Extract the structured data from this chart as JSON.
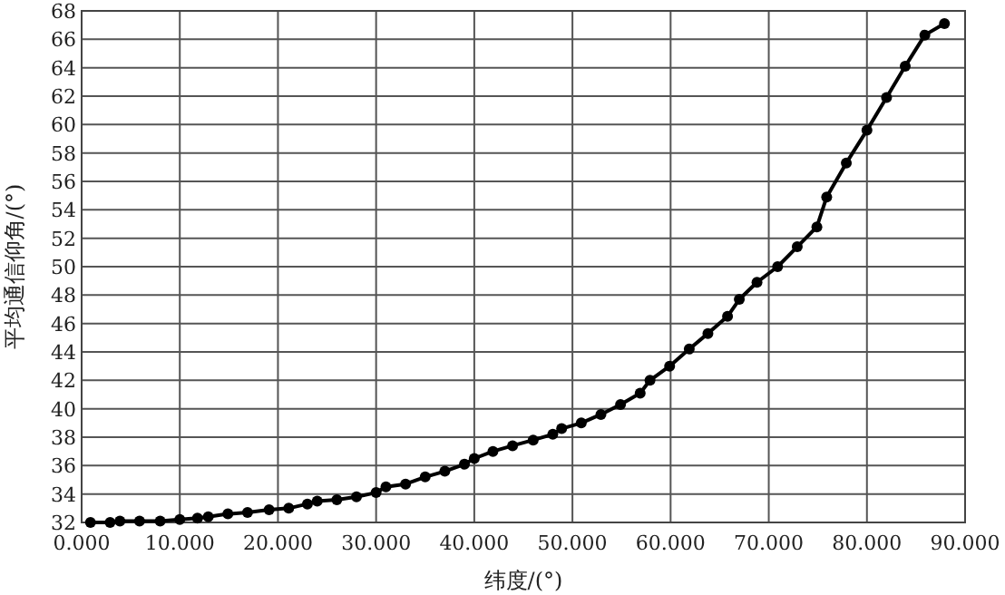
{
  "chart_data": {
    "type": "line",
    "xlabel": "纬度/(°)",
    "ylabel": "平均通信仰角/(°)",
    "grid": true,
    "marker": "circle",
    "line_style": "solid",
    "color": "#000000",
    "xlim": [
      0,
      90
    ],
    "ylim": [
      32,
      68
    ],
    "xticks": [
      {
        "value": 0,
        "label": "0.000"
      },
      {
        "value": 10,
        "label": "10.000"
      },
      {
        "value": 20,
        "label": "20.000"
      },
      {
        "value": 30,
        "label": "30.000"
      },
      {
        "value": 40,
        "label": "40.000"
      },
      {
        "value": 50,
        "label": "50.000"
      },
      {
        "value": 60,
        "label": "60.000"
      },
      {
        "value": 70,
        "label": "70.000"
      },
      {
        "value": 80,
        "label": "80.000"
      },
      {
        "value": 90,
        "label": "90.000"
      }
    ],
    "yticks": [
      32,
      34,
      36,
      38,
      40,
      42,
      44,
      46,
      48,
      50,
      52,
      54,
      56,
      58,
      60,
      62,
      64,
      66,
      68
    ],
    "x": [
      0.9,
      2.9,
      3.9,
      5.9,
      8,
      10,
      11.8,
      12.9,
      14.9,
      16.9,
      19.1,
      21.1,
      23,
      24,
      26,
      28,
      30,
      31,
      33,
      35,
      37,
      39,
      40,
      41.9,
      43.9,
      46,
      48,
      48.9,
      50.9,
      52.9,
      54.9,
      56.9,
      57.9,
      59.9,
      61.9,
      63.8,
      65.8,
      67,
      68.8,
      70.9,
      72.9,
      74.9,
      75.9,
      77.9,
      80,
      82,
      83.9,
      85.9,
      87.9
    ],
    "values": [
      32.0,
      32.0,
      32.1,
      32.1,
      32.1,
      32.2,
      32.3,
      32.4,
      32.6,
      32.7,
      32.9,
      33.0,
      33.3,
      33.5,
      33.6,
      33.8,
      34.1,
      34.5,
      34.7,
      35.2,
      35.6,
      36.1,
      36.5,
      37.0,
      37.4,
      37.8,
      38.2,
      38.6,
      39.0,
      39.6,
      40.3,
      41.1,
      42.0,
      43.0,
      44.2,
      45.3,
      46.5,
      47.7,
      48.9,
      50.0,
      51.4,
      52.8,
      54.9,
      57.3,
      59.6,
      61.9,
      64.1,
      66.3,
      67.1
    ]
  }
}
